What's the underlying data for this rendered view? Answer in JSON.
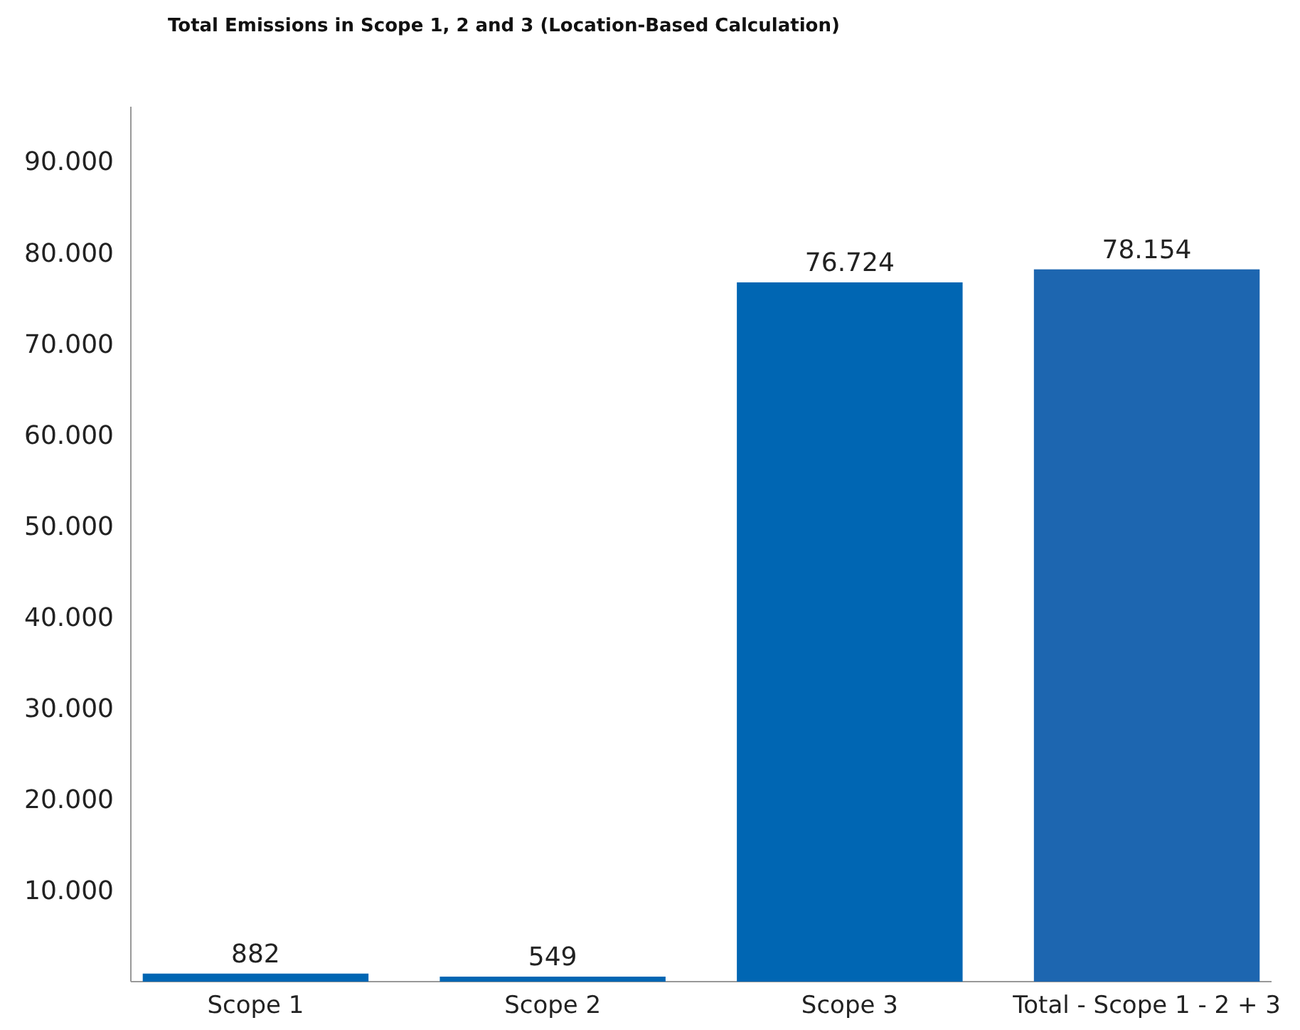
{
  "chart_data": {
    "type": "bar",
    "title": "Total Emissions in Scope 1, 2 and 3 (Location-Based Calculation)",
    "categories": [
      "Scope 1",
      "Scope 2",
      "Scope 3",
      "Total - Scope 1 - 2 + 3"
    ],
    "values": [
      882,
      549,
      76724,
      78154
    ],
    "colors": [
      "#0066b3",
      "#0066b3",
      "#0066b3",
      "#1d66b0"
    ],
    "value_labels": [
      "882",
      "549",
      "76.724",
      "78.154"
    ],
    "ylim": [
      0,
      96000
    ],
    "yticks": [
      {
        "value": 10000,
        "label": "10.000"
      },
      {
        "value": 20000,
        "label": "20.000"
      },
      {
        "value": 30000,
        "label": "30.000"
      },
      {
        "value": 40000,
        "label": "40.000"
      },
      {
        "value": 50000,
        "label": "50.000"
      },
      {
        "value": 60000,
        "label": "60.000"
      },
      {
        "value": 70000,
        "label": "70.000"
      },
      {
        "value": 80000,
        "label": "80.000"
      },
      {
        "value": 90000,
        "label": "90.000"
      }
    ],
    "grid": false
  }
}
